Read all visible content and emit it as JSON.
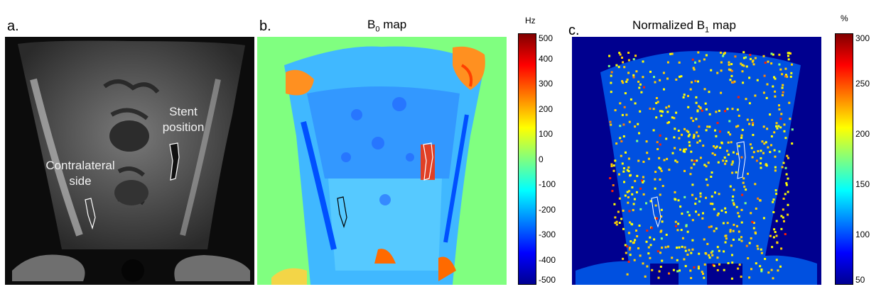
{
  "figure": {
    "panel_a": {
      "letter": "a.",
      "labels": {
        "stent_line1": "Stent",
        "stent_line2": "position",
        "contra_line1": "Contralateral",
        "contra_line2": "side"
      }
    },
    "panel_b": {
      "letter": "b.",
      "title_main": "B",
      "title_sub": "0",
      "title_rest": " map",
      "colorbar": {
        "unit": "Hz",
        "ticks": [
          "500",
          "400",
          "300",
          "200",
          "100",
          "0",
          "-100",
          "-200",
          "-300",
          "-400",
          "-500"
        ],
        "min": -500,
        "max": 500
      }
    },
    "panel_c": {
      "letter": "c.",
      "title_main": "Normalized B",
      "title_sub": "1",
      "title_rest": " map",
      "colorbar": {
        "unit": "%",
        "ticks": [
          "300",
          "250",
          "200",
          "150",
          "100",
          "50"
        ],
        "min": 50,
        "max": 300
      }
    },
    "colormap": "jet",
    "colors": {
      "b0_background": "#80ff80",
      "b1_background": "#00008f",
      "b1_body": "#0050e0"
    }
  }
}
